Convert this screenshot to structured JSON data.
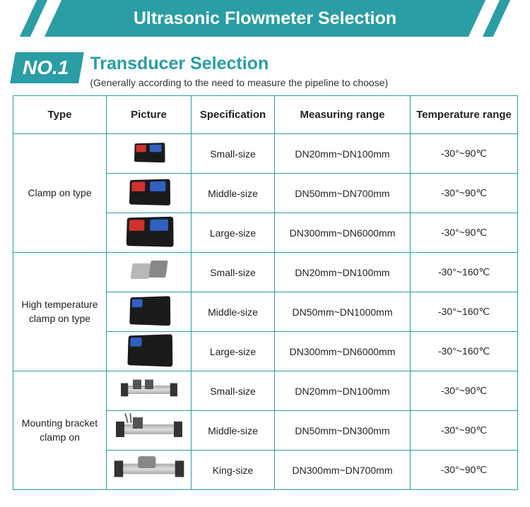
{
  "header": {
    "title": "Ultrasonic Flowmeter Selection"
  },
  "section": {
    "badge": "NO.1",
    "title": "Transducer Selection",
    "subtitle": "(Generally according to the need to measure the pipeline to choose)"
  },
  "table": {
    "columns": [
      "Type",
      "Picture",
      "Specification",
      "Measuring range",
      "Temperature range"
    ],
    "groups": [
      {
        "type": "Clamp on type",
        "rows": [
          {
            "spec": "Small-size",
            "range": "DN20mm~DN100mm",
            "temp": "-30°~90℃"
          },
          {
            "spec": "Middle-size",
            "range": "DN50mm~DN700mm",
            "temp": "-30°~90℃"
          },
          {
            "spec": "Large-size",
            "range": "DN300mm~DN6000mm",
            "temp": "-30°~90℃"
          }
        ]
      },
      {
        "type": "High temperature clamp on type",
        "rows": [
          {
            "spec": "Small-size",
            "range": "DN20mm~DN100mm",
            "temp": "-30°~160℃"
          },
          {
            "spec": "Middle-size",
            "range": "DN50mm~DN1000mm",
            "temp": "-30°~160℃"
          },
          {
            "spec": "Large-size",
            "range": "DN300mm~DN6000mm",
            "temp": "-30°~160℃"
          }
        ]
      },
      {
        "type": "Mounting bracket clamp on",
        "rows": [
          {
            "spec": "Small-size",
            "range": "DN20mm~DN100mm",
            "temp": "-30°~90℃"
          },
          {
            "spec": "Middle-size",
            "range": "DN50mm~DN300mm",
            "temp": "-30°~90℃"
          },
          {
            "spec": "King-size",
            "range": "DN300mm~DN700mm",
            "temp": "-30°~90℃"
          }
        ]
      }
    ]
  },
  "style": {
    "accent_color": "#2a9da5",
    "border_color": "#2a9da5",
    "text_color": "#222222",
    "background": "#ffffff"
  }
}
